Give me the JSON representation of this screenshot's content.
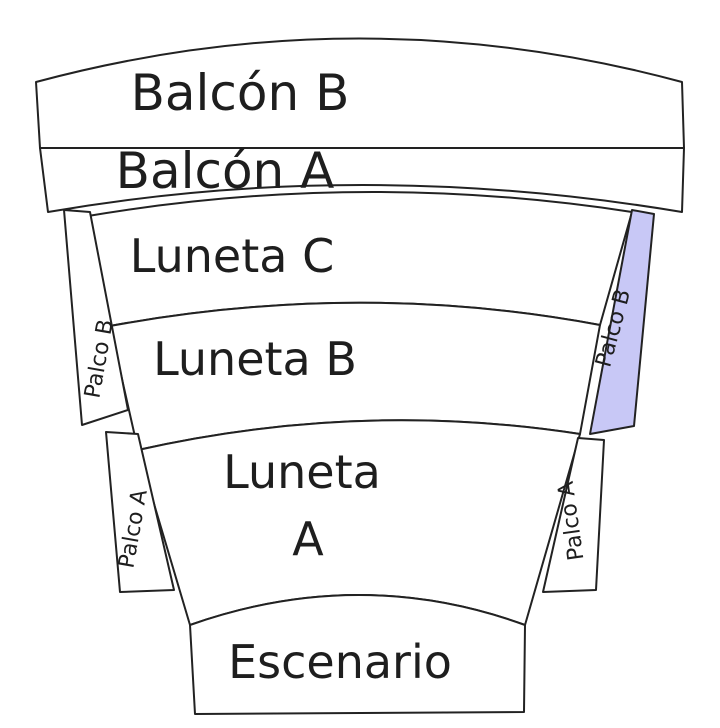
{
  "sections": {
    "balcon_b": "Balcón B",
    "balcon_a": "Balcón A",
    "luneta_c": "Luneta C",
    "luneta_b": "Luneta B",
    "luneta_a_line1": "Luneta",
    "luneta_a_line2": "A",
    "palco_b_left": "Palco B",
    "palco_b_right": "Palco B",
    "palco_a_left": "Palco A",
    "palco_a_right": "Palco A",
    "escenario": "Escenario"
  },
  "colors": {
    "outline": "#222222",
    "section_fill": "#ffffff",
    "highlight_fill": "#c8c8f6"
  },
  "highlighted_section": "palco_b_right"
}
